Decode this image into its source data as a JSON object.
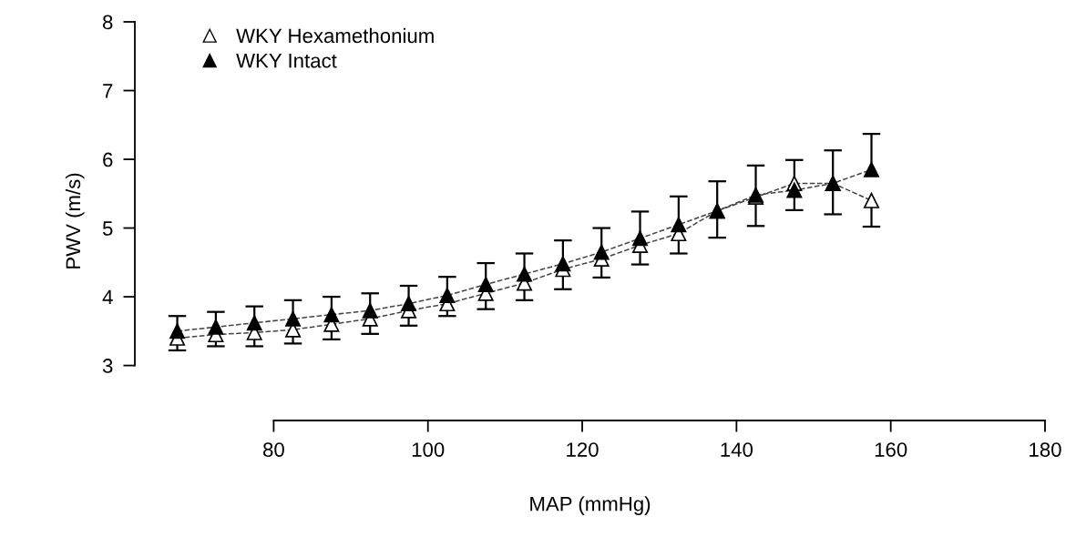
{
  "chart_data": {
    "type": "line",
    "xlabel": "MAP (mmHg)",
    "ylabel": "PWV (m/s)",
    "x": [
      67.5,
      72.5,
      77.5,
      82.5,
      87.5,
      92.5,
      97.5,
      102.5,
      107.5,
      112.5,
      117.5,
      122.5,
      127.5,
      132.5,
      137.5,
      142.5,
      147.5,
      152.5,
      157.5
    ],
    "xlim": [
      62,
      180
    ],
    "xticks": [
      80,
      100,
      120,
      140,
      160,
      180
    ],
    "ylim": [
      2.2,
      8
    ],
    "yticks": [
      3,
      4,
      5,
      6,
      7,
      8
    ],
    "grid": false,
    "legend": "top left",
    "marker": "triangle",
    "line_style": "dashed",
    "series": [
      {
        "name": "WKY Hexamethonium",
        "color": "#ffffff",
        "values": [
          3.4,
          3.45,
          3.48,
          3.52,
          3.6,
          3.68,
          3.8,
          3.9,
          4.05,
          4.2,
          4.4,
          4.55,
          4.75,
          4.92,
          5.25,
          5.45,
          5.65,
          5.65,
          5.4
        ],
        "errors": [
          [
            3.22,
            3.4
          ],
          [
            3.28,
            3.45
          ],
          [
            3.28,
            3.48
          ],
          [
            3.32,
            3.52
          ],
          [
            3.38,
            3.6
          ],
          [
            3.46,
            3.68
          ],
          [
            3.58,
            3.8
          ],
          [
            3.72,
            3.9
          ],
          [
            3.82,
            4.05
          ],
          [
            3.95,
            4.2
          ],
          [
            4.11,
            4.4
          ],
          [
            4.28,
            4.55
          ],
          [
            4.47,
            4.75
          ],
          [
            4.63,
            4.92
          ],
          [
            4.86,
            5.25
          ],
          [
            5.03,
            5.45
          ],
          [
            5.26,
            5.65
          ],
          [
            5.2,
            5.65
          ],
          [
            5.02,
            5.4
          ]
        ]
      },
      {
        "name": "WKY Intact",
        "color": "#000000",
        "values": [
          3.5,
          3.56,
          3.62,
          3.68,
          3.74,
          3.8,
          3.9,
          4.02,
          4.18,
          4.33,
          4.48,
          4.65,
          4.85,
          5.05,
          5.25,
          5.48,
          5.55,
          5.65,
          5.85
        ],
        "errors": [
          [
            3.5,
            3.72
          ],
          [
            3.56,
            3.78
          ],
          [
            3.62,
            3.86
          ],
          [
            3.68,
            3.95
          ],
          [
            3.74,
            4.0
          ],
          [
            3.8,
            4.05
          ],
          [
            3.9,
            4.16
          ],
          [
            4.02,
            4.29
          ],
          [
            4.18,
            4.49
          ],
          [
            4.33,
            4.63
          ],
          [
            4.48,
            4.82
          ],
          [
            4.65,
            5.0
          ],
          [
            4.85,
            5.24
          ],
          [
            5.05,
            5.46
          ],
          [
            5.25,
            5.68
          ],
          [
            5.48,
            5.91
          ],
          [
            5.55,
            5.99
          ],
          [
            5.65,
            6.13
          ],
          [
            5.85,
            6.37
          ]
        ]
      }
    ]
  }
}
